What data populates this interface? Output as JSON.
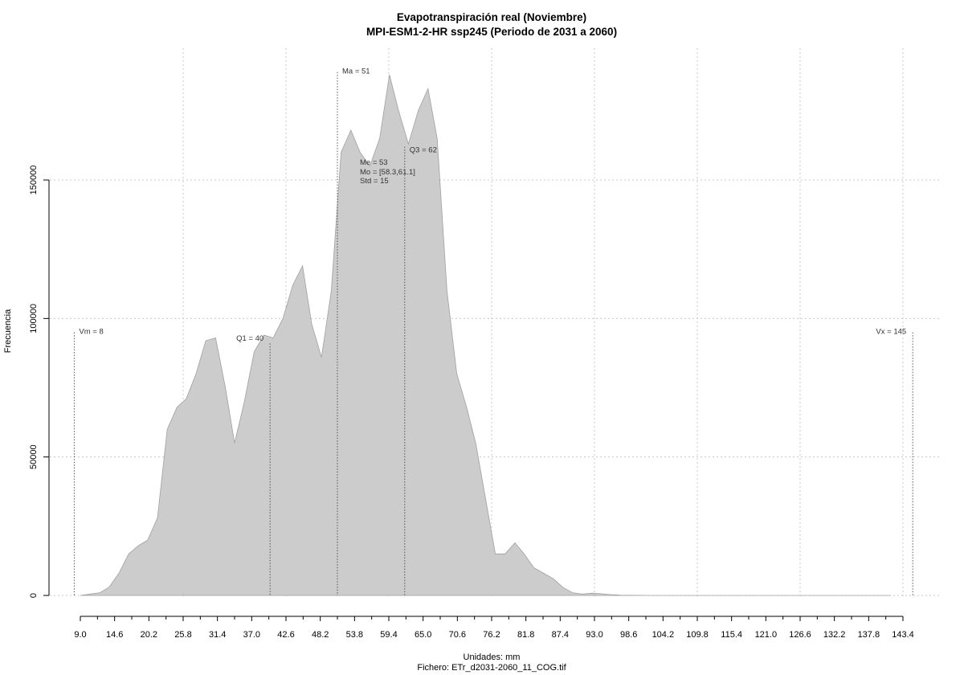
{
  "chart_data": {
    "type": "area",
    "title": "Evapotranspiración real (Noviembre)",
    "subtitle": "MPI-ESM1-2-HR ssp245 (Periodo de 2031 a 2060)",
    "xlabel": "Unidades: mm",
    "caption": "Fichero: ETr_d2031-2060_11_COG.tif",
    "ylabel": "Frecuencia",
    "xlim": [
      9.0,
      143.4
    ],
    "ylim": [
      0,
      190000
    ],
    "x_ticks": [
      "9.0",
      "14.6",
      "20.2",
      "25.8",
      "31.4",
      "37.0",
      "42.6",
      "48.2",
      "53.8",
      "59.4",
      "65.0",
      "70.6",
      "76.2",
      "81.8",
      "87.4",
      "93.0",
      "98.6",
      "104.2",
      "109.8",
      "115.4",
      "121.0",
      "126.6",
      "132.2",
      "137.8",
      "143.4"
    ],
    "y_ticks": [
      0,
      50000,
      100000,
      150000
    ],
    "y_tick_labels": [
      "0",
      "50000",
      "100000",
      "150000"
    ],
    "grid": true,
    "fill_color": "#cccccc",
    "line_color": "#a0a0a0",
    "x": [
      9.0,
      10.6,
      12.2,
      13.7,
      15.3,
      16.9,
      18.5,
      20.0,
      21.6,
      23.2,
      24.8,
      26.3,
      27.9,
      29.5,
      31.1,
      32.7,
      34.2,
      35.8,
      37.4,
      39.0,
      40.5,
      42.1,
      43.7,
      45.3,
      46.8,
      48.4,
      50.0,
      51.6,
      53.2,
      54.7,
      56.3,
      57.9,
      59.5,
      61.0,
      62.6,
      64.2,
      65.8,
      67.3,
      68.9,
      70.5,
      72.1,
      73.6,
      75.2,
      76.8,
      78.4,
      80.0,
      81.5,
      83.1,
      84.7,
      86.3,
      87.8,
      89.4,
      91.0,
      92.6,
      94.1,
      95.7,
      97.3,
      98.9,
      100.5,
      102.0,
      103.6,
      105.2,
      106.8,
      108.3,
      109.9,
      111.5,
      113.1,
      114.6,
      116.2,
      117.8,
      119.4,
      120.9,
      122.5,
      124.1,
      125.7,
      127.3,
      128.8,
      130.4,
      132.0,
      133.6,
      135.1,
      136.7,
      138.3,
      139.9,
      141.4
    ],
    "values": [
      0,
      500,
      1000,
      3000,
      8000,
      15000,
      18000,
      20000,
      28000,
      60000,
      68000,
      71000,
      80000,
      92000,
      93000,
      75000,
      55000,
      70000,
      88000,
      94000,
      93000,
      100000,
      112000,
      119000,
      98000,
      86000,
      110000,
      160000,
      168000,
      160000,
      155000,
      165000,
      188000,
      175000,
      163000,
      175000,
      183000,
      165000,
      110000,
      80000,
      68000,
      55000,
      35000,
      15000,
      15000,
      19000,
      15000,
      10000,
      8000,
      6000,
      3000,
      1000,
      500,
      800,
      600,
      300,
      100,
      50,
      20,
      10,
      5,
      3,
      2,
      1,
      0,
      0,
      0,
      0,
      0,
      0,
      0,
      0,
      0,
      0,
      0,
      0,
      0,
      0,
      0,
      0,
      0,
      0,
      0,
      0,
      0
    ],
    "markers": [
      {
        "label": "Vm = 8",
        "x": 8
      },
      {
        "label": "Q1 = 40",
        "x": 40
      },
      {
        "label": "Ma = 51",
        "x": 51
      },
      {
        "label": "Q3 = 62",
        "x": 62
      },
      {
        "label": "Vx = 145",
        "x": 145
      }
    ],
    "stats_text": [
      "Me = 53",
      "Mo = [58.3,61.1]",
      "Std = 15"
    ]
  }
}
